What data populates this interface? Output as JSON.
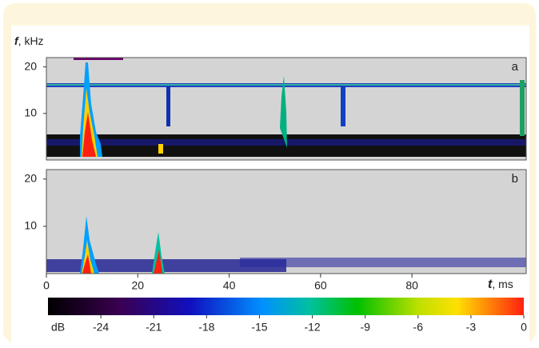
{
  "chart_data": {
    "type": "spectrogram",
    "panels": [
      {
        "label": "a"
      },
      {
        "label": "b"
      }
    ],
    "ylabel_symbol": "f",
    "ylabel_unit": ", kHz",
    "xlabel_symbol": "t",
    "xlabel_unit": ", ms",
    "xlim": [
      0,
      105
    ],
    "xticks": [
      0,
      20,
      40,
      60,
      80
    ],
    "ylim": [
      0,
      22
    ],
    "yticks": [
      10,
      20
    ],
    "colorbar": {
      "label": "dB",
      "lim": [
        -27,
        0
      ],
      "ticks": [
        -24,
        -21,
        -18,
        -15,
        -12,
        -9,
        -6,
        -3,
        0
      ]
    }
  }
}
